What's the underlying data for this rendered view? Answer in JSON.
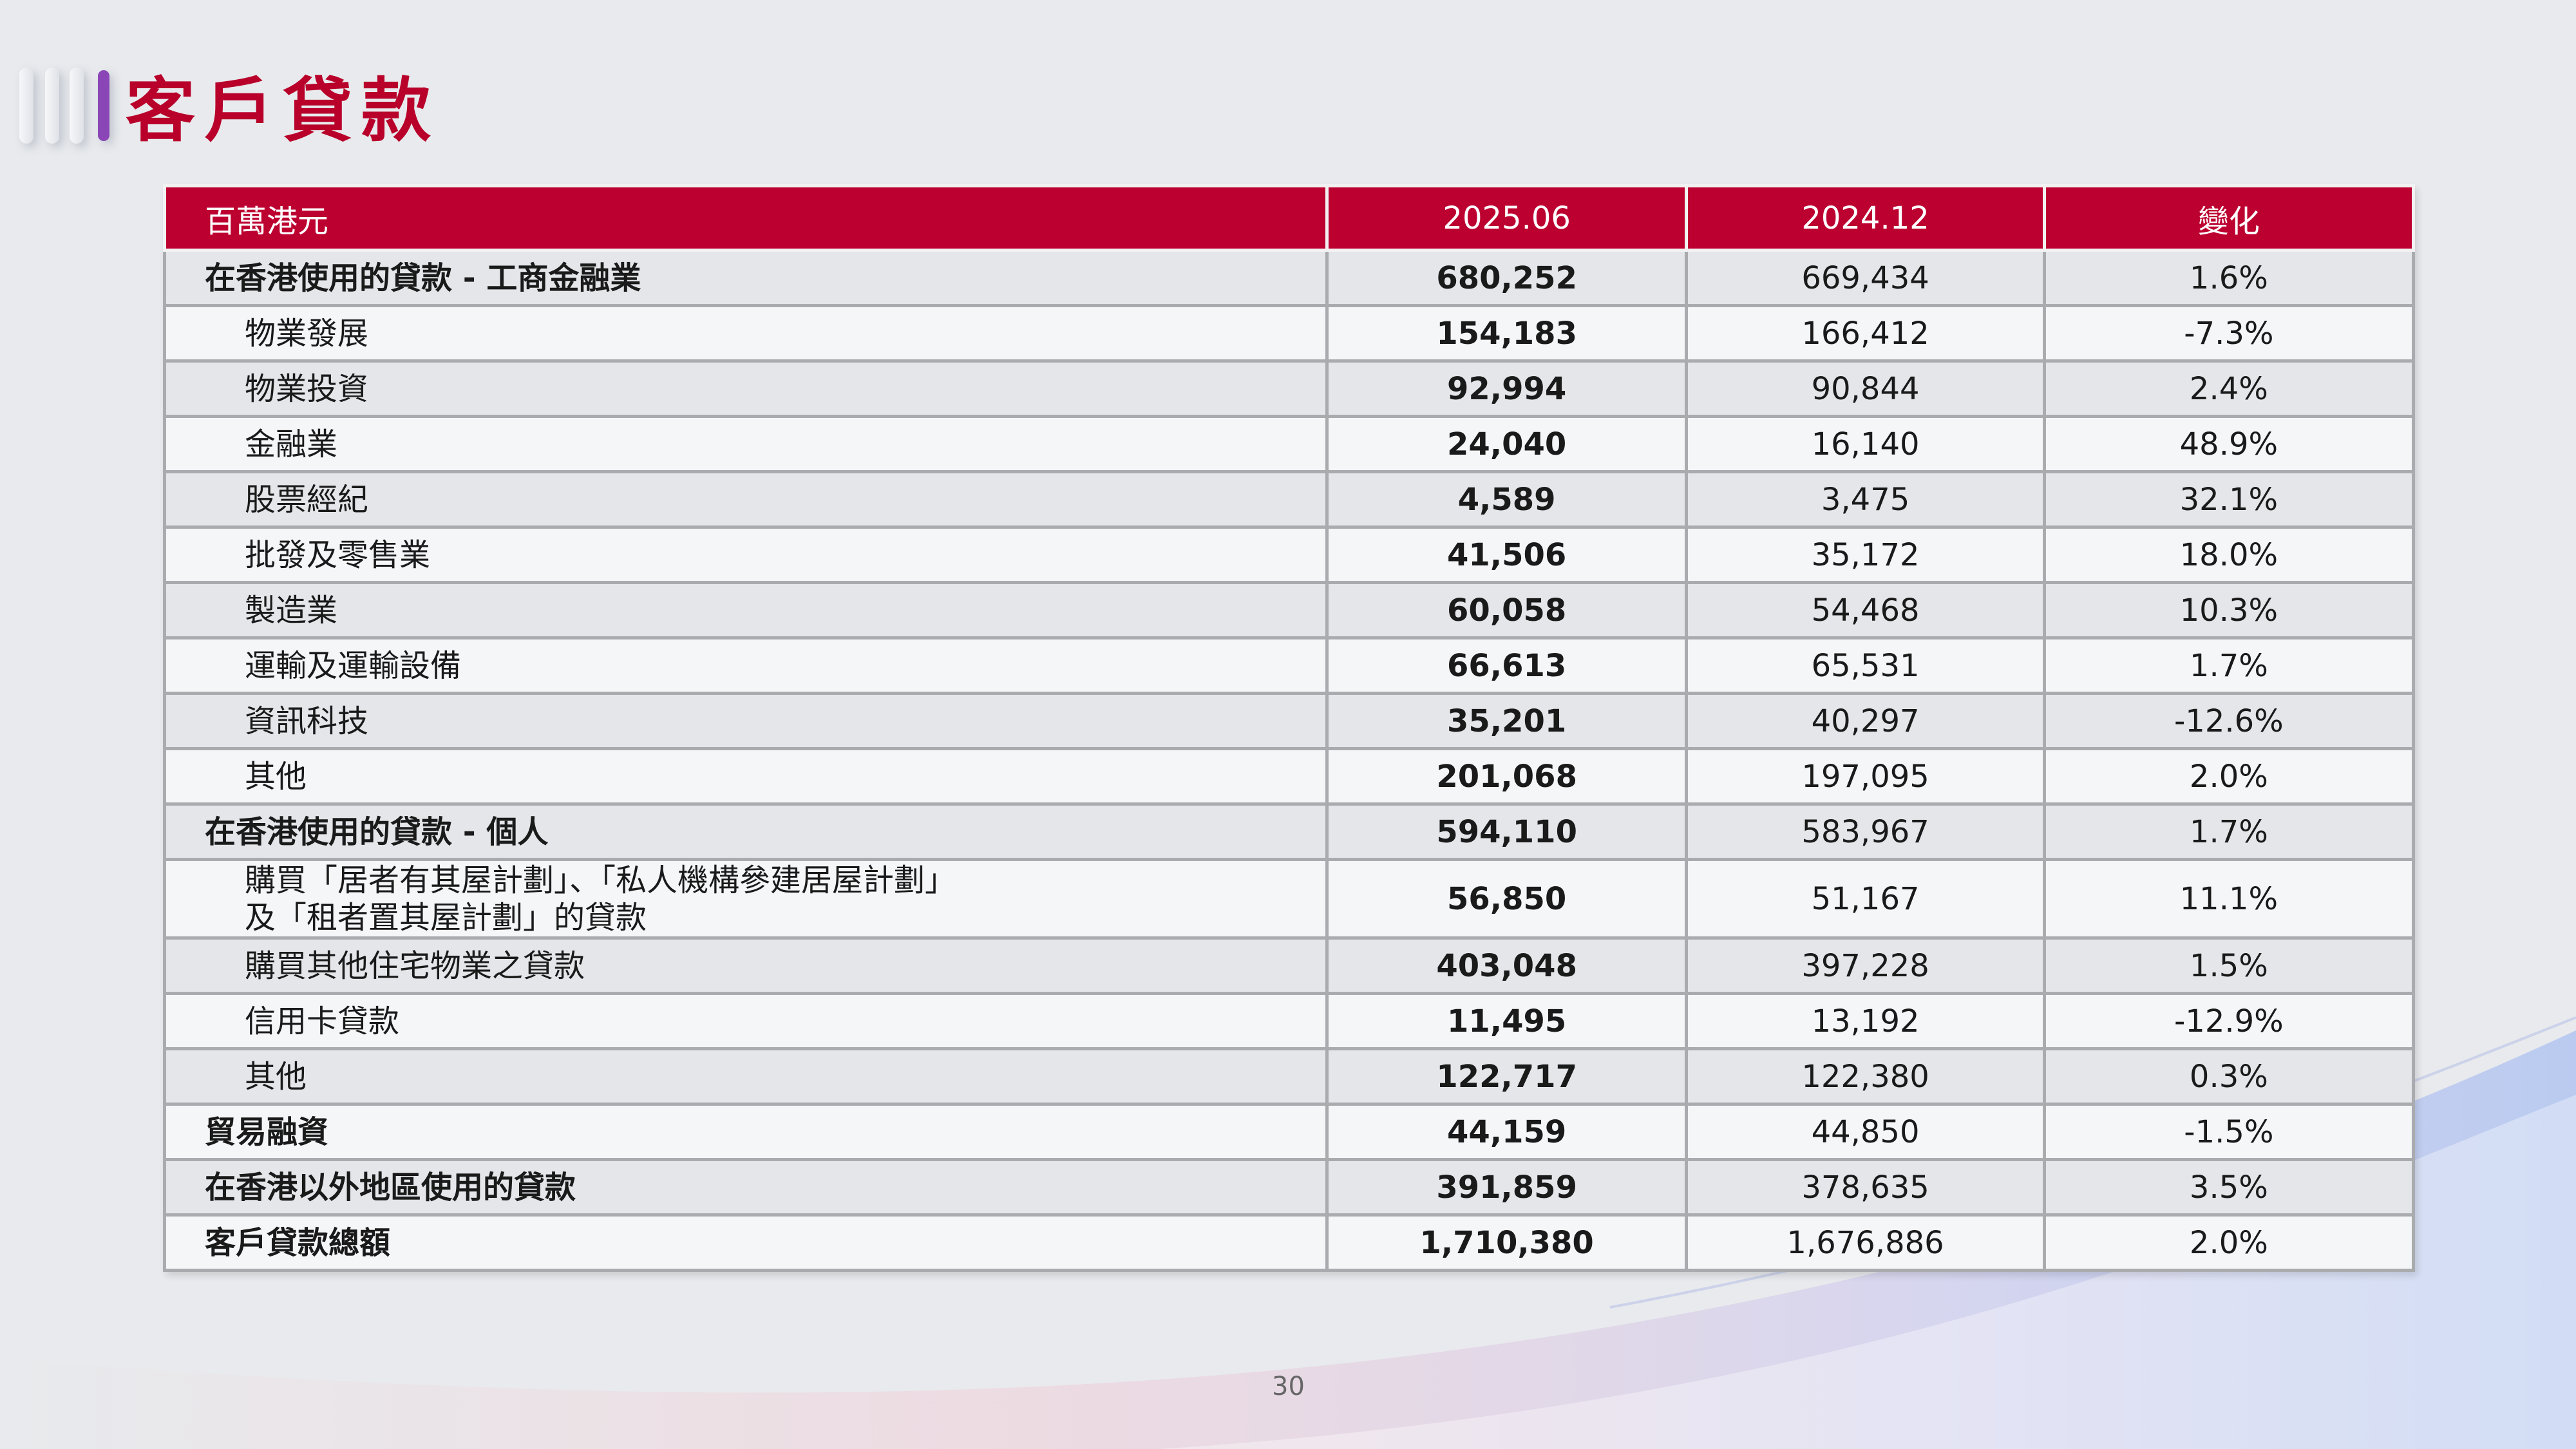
{
  "title": "客戶貸款",
  "table": {
    "headers": [
      "百萬港元",
      "2025.06",
      "2024.12",
      "變化"
    ],
    "rows": [
      {
        "label": "在香港使用的貸款 - 工商金融業",
        "v2025": "680,252",
        "v2024": "669,434",
        "change": "1.6%",
        "level": "main"
      },
      {
        "label": "物業發展",
        "v2025": "154,183",
        "v2024": "166,412",
        "change": "-7.3%",
        "level": "sub"
      },
      {
        "label": "物業投資",
        "v2025": "92,994",
        "v2024": "90,844",
        "change": "2.4%",
        "level": "sub"
      },
      {
        "label": "金融業",
        "v2025": "24,040",
        "v2024": "16,140",
        "change": "48.9%",
        "level": "sub"
      },
      {
        "label": "股票經紀",
        "v2025": "4,589",
        "v2024": "3,475",
        "change": "32.1%",
        "level": "sub"
      },
      {
        "label": "批發及零售業",
        "v2025": "41,506",
        "v2024": "35,172",
        "change": "18.0%",
        "level": "sub"
      },
      {
        "label": "製造業",
        "v2025": "60,058",
        "v2024": "54,468",
        "change": "10.3%",
        "level": "sub"
      },
      {
        "label": "運輸及運輸設備",
        "v2025": "66,613",
        "v2024": "65,531",
        "change": "1.7%",
        "level": "sub"
      },
      {
        "label": "資訊科技",
        "v2025": "35,201",
        "v2024": "40,297",
        "change": "-12.6%",
        "level": "sub"
      },
      {
        "label": "其他",
        "v2025": "201,068",
        "v2024": "197,095",
        "change": "2.0%",
        "level": "sub"
      },
      {
        "label": "在香港使用的貸款 - 個人",
        "v2025": "594,110",
        "v2024": "583,967",
        "change": "1.7%",
        "level": "main"
      },
      {
        "label": "購買「居者有其屋計劃」、「私人機構參建居屋計劃」",
        "label2": "及「租者置其屋計劃」的貸款",
        "v2025": "56,850",
        "v2024": "51,167",
        "change": "11.1%",
        "level": "sub"
      },
      {
        "label": "購買其他住宅物業之貸款",
        "v2025": "403,048",
        "v2024": "397,228",
        "change": "1.5%",
        "level": "sub"
      },
      {
        "label": "信用卡貸款",
        "v2025": "11,495",
        "v2024": "13,192",
        "change": "-12.9%",
        "level": "sub"
      },
      {
        "label": "其他",
        "v2025": "122,717",
        "v2024": "122,380",
        "change": "0.3%",
        "level": "sub"
      },
      {
        "label": "貿易融資",
        "v2025": "44,159",
        "v2024": "44,850",
        "change": "-1.5%",
        "level": "main"
      },
      {
        "label": "在香港以外地區使用的貸款",
        "v2025": "391,859",
        "v2024": "378,635",
        "change": "3.5%",
        "level": "main"
      },
      {
        "label": "客戶貸款總額",
        "v2025": "1,710,380",
        "v2024": "1,676,886",
        "change": "2.0%",
        "level": "total"
      }
    ]
  },
  "page_number": "30",
  "colors": {
    "accent": "#b8002a",
    "header_bg": "#bc0030",
    "marker": "#8a46b6"
  }
}
